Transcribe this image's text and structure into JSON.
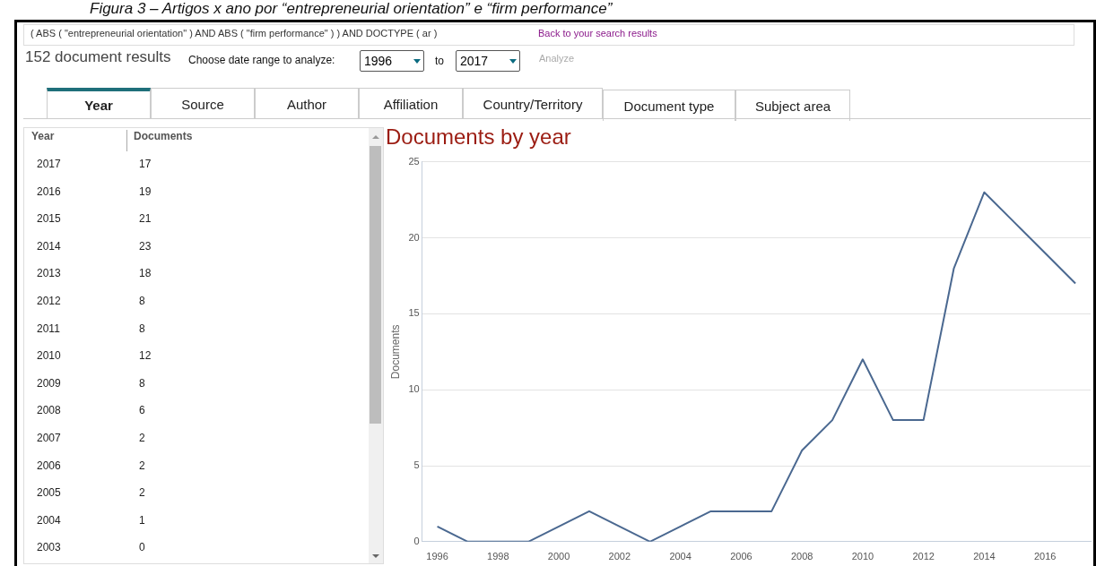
{
  "chart_data": {
    "type": "line",
    "title": "Documents by year",
    "ylabel": "Documents",
    "x": [
      1996,
      1997,
      1998,
      1999,
      2000,
      2001,
      2002,
      2003,
      2004,
      2005,
      2006,
      2007,
      2008,
      2009,
      2010,
      2011,
      2012,
      2013,
      2014,
      2015,
      2016,
      2017
    ],
    "series": [
      {
        "color": "#4a6890",
        "values": [
          1,
          0,
          0,
          0,
          1,
          2,
          1,
          0,
          1,
          2,
          2,
          2,
          6,
          8,
          12,
          8,
          8,
          18,
          23,
          21,
          19,
          17
        ]
      }
    ],
    "xlim": [
      1995.5,
      2017.5
    ],
    "xticks": [
      1996,
      1998,
      2000,
      2002,
      2004,
      2006,
      2008,
      2010,
      2012,
      2014,
      2016
    ],
    "ylim": [
      0,
      25
    ],
    "yticks": [
      0,
      5,
      10,
      15,
      20,
      25
    ],
    "grid": "y",
    "legend": false,
    "marker": "none",
    "line_style": "solid",
    "annotations": [
      "Figura 3 – Artigos x ano por “entrepreneurial orientation” e “firm performance”",
      "( ABS ( \"entrepreneurial orientation\" ) AND ABS ( \"firm performance\" ) ) AND DOCTYPE ( ar )",
      "Back to your search results",
      "152 document results",
      "Choose date range to analyze:",
      "1996",
      "to",
      "2017",
      "Analyze",
      "Year",
      "Source",
      "Author",
      "Affiliation",
      "Country/Territory",
      "Document type",
      "Subject area",
      "Year",
      "Documents",
      "2017",
      "17",
      "2016",
      "19",
      "2015",
      "21",
      "2014",
      "23",
      "2013",
      "18",
      "2012",
      "8",
      "2011",
      "8",
      "2010",
      "12",
      "2009",
      "8",
      "2008",
      "6",
      "2007",
      "2",
      "2006",
      "2",
      "2005",
      "2",
      "2004",
      "1",
      "2003",
      "0"
    ]
  }
}
